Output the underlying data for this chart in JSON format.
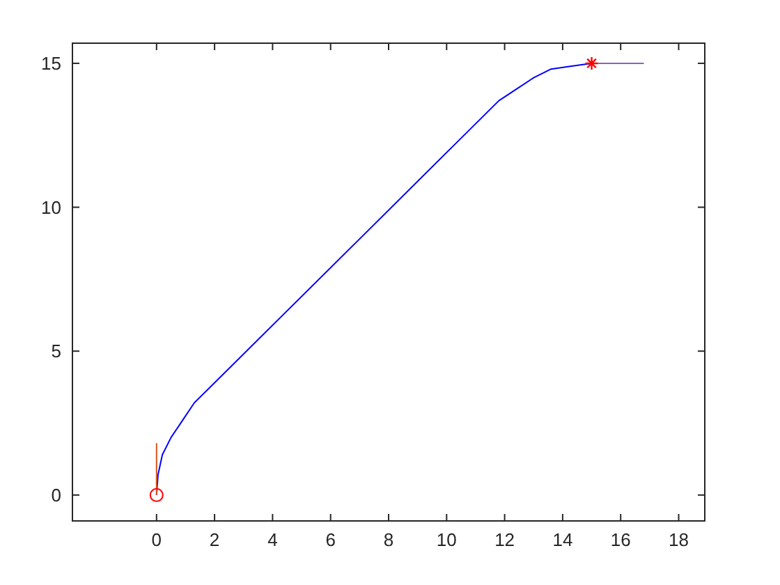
{
  "chart_data": {
    "type": "line",
    "xlim": [
      -2.9,
      18.9
    ],
    "ylim": [
      -0.9,
      15.7
    ],
    "xticks": [
      0,
      2,
      4,
      6,
      8,
      10,
      12,
      14,
      16,
      18
    ],
    "yticks": [
      0,
      5,
      10,
      15
    ],
    "grid": false,
    "series": [
      {
        "color": "#0000ff",
        "x": [
          0,
          0.05,
          0.2,
          0.5,
          0.9,
          1.3,
          11.8,
          12.4,
          13,
          13.6,
          14.3,
          15
        ],
        "values": [
          0,
          0.7,
          1.4,
          2,
          2.6,
          3.2,
          13.7,
          14.1,
          14.5,
          14.8,
          14.9,
          15
        ],
        "marker": "none"
      },
      {
        "color": "#d95319",
        "x": [
          0,
          0
        ],
        "values": [
          0,
          1.8
        ],
        "marker": "none"
      },
      {
        "color": "#9060c0",
        "x": [
          15,
          16.8
        ],
        "values": [
          15,
          15
        ],
        "marker": "none"
      },
      {
        "type": "scatter",
        "color": "#ff0000",
        "x": [
          0
        ],
        "values": [
          0
        ],
        "marker": "circle"
      },
      {
        "type": "scatter",
        "color": "#ff0000",
        "x": [
          15
        ],
        "values": [
          15
        ],
        "marker": "cross"
      }
    ]
  }
}
